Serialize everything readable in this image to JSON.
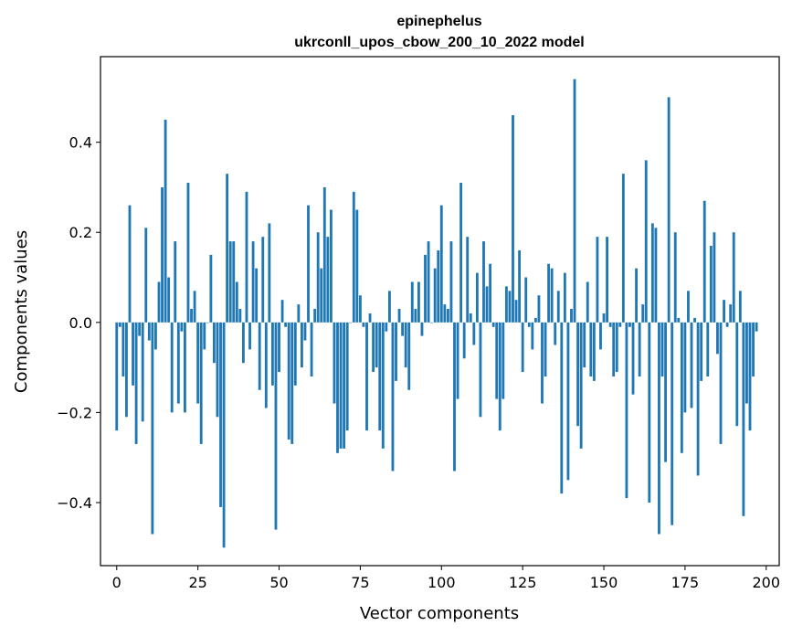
{
  "chart_data": {
    "type": "bar",
    "title": "epinephelus",
    "subtitle": "ukrconll_upos_cbow_200_10_2022 model",
    "xlabel": "Vector components",
    "ylabel": "Components values",
    "xlim": [
      -5,
      204
    ],
    "ylim": [
      -0.54,
      0.59
    ],
    "xticks": [
      0,
      25,
      50,
      75,
      100,
      125,
      150,
      175,
      200
    ],
    "xtick_labels": [
      "0",
      "25",
      "50",
      "75",
      "100",
      "125",
      "150",
      "175",
      "200"
    ],
    "yticks": [
      -0.4,
      -0.2,
      0.0,
      0.2,
      0.4
    ],
    "ytick_labels": [
      "−0.4",
      "−0.2",
      "0.0",
      "0.2",
      "0.4"
    ],
    "bar_color": "#1f77b4",
    "values": [
      -0.24,
      -0.01,
      -0.12,
      -0.21,
      0.26,
      -0.14,
      -0.27,
      -0.03,
      -0.22,
      0.21,
      -0.04,
      -0.47,
      -0.06,
      0.09,
      0.3,
      0.45,
      0.1,
      -0.2,
      0.18,
      -0.18,
      -0.02,
      -0.2,
      0.31,
      0.03,
      0.07,
      -0.18,
      -0.27,
      -0.06,
      0.0,
      0.15,
      -0.09,
      -0.21,
      -0.41,
      -0.5,
      0.33,
      0.18,
      0.18,
      0.09,
      0.03,
      -0.09,
      0.29,
      -0.06,
      0.18,
      0.12,
      -0.15,
      0.19,
      -0.19,
      0.22,
      -0.14,
      -0.46,
      -0.11,
      0.05,
      -0.01,
      -0.26,
      -0.27,
      -0.14,
      0.04,
      -0.1,
      -0.04,
      0.26,
      -0.12,
      0.03,
      0.2,
      0.12,
      0.3,
      0.19,
      0.25,
      -0.18,
      -0.29,
      -0.28,
      -0.28,
      -0.24,
      0.0,
      0.29,
      0.25,
      0.06,
      -0.01,
      -0.24,
      0.02,
      -0.11,
      -0.1,
      -0.24,
      -0.28,
      -0.02,
      0.07,
      -0.33,
      -0.13,
      0.03,
      -0.03,
      -0.1,
      -0.15,
      0.09,
      0.03,
      0.09,
      -0.03,
      0.15,
      0.18,
      0.0,
      0.12,
      0.16,
      0.26,
      0.04,
      0.03,
      0.18,
      -0.33,
      -0.17,
      0.31,
      -0.08,
      0.19,
      0.02,
      -0.05,
      0.11,
      -0.21,
      0.18,
      0.08,
      0.13,
      -0.01,
      -0.17,
      -0.24,
      -0.17,
      0.08,
      0.07,
      0.46,
      0.05,
      0.16,
      -0.11,
      0.1,
      -0.01,
      -0.06,
      0.01,
      0.06,
      -0.18,
      -0.12,
      0.13,
      0.12,
      -0.05,
      0.07,
      -0.38,
      0.11,
      -0.35,
      0.03,
      0.54,
      -0.23,
      -0.28,
      -0.1,
      0.09,
      -0.12,
      -0.13,
      0.19,
      -0.06,
      0.02,
      0.19,
      -0.01,
      -0.12,
      -0.11,
      -0.01,
      0.33,
      -0.39,
      -0.01,
      -0.16,
      0.12,
      -0.12,
      0.04,
      0.36,
      -0.4,
      0.22,
      0.21,
      -0.47,
      -0.12,
      -0.31,
      0.5,
      -0.45,
      0.2,
      0.01,
      -0.29,
      -0.2,
      0.07,
      -0.19,
      0.01,
      -0.34,
      -0.13,
      0.27,
      -0.12,
      0.17,
      0.2,
      -0.07,
      -0.27,
      0.05,
      -0.01,
      0.04,
      0.2,
      -0.23,
      0.07,
      -0.43,
      -0.18,
      -0.24,
      -0.12,
      -0.02
    ]
  }
}
